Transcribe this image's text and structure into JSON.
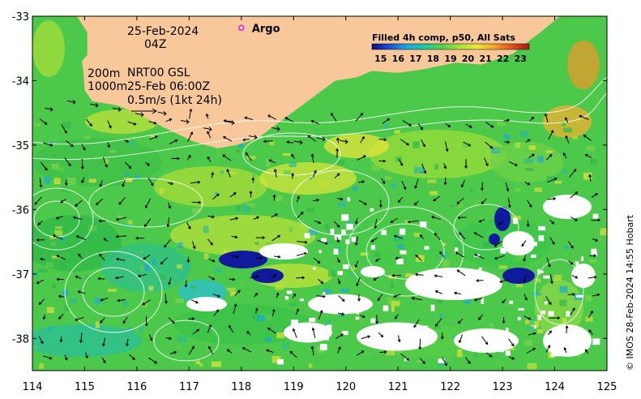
{
  "map": {
    "lon_range": [
      114,
      125
    ],
    "lat_range": [
      -38.5,
      -33
    ],
    "x_ticks": [
      "114",
      "115",
      "116",
      "117",
      "118",
      "119",
      "120",
      "121",
      "122",
      "123",
      "124",
      "125"
    ],
    "y_ticks": [
      "-33",
      "-34",
      "-35",
      "-36",
      "-37",
      "-38"
    ],
    "land_color": "#f9c89a",
    "missing_color": "#ffffff"
  },
  "annotations": {
    "date": "25-Feb-2024",
    "time": "04Z",
    "contour_depths_200": "200m",
    "contour_depths_1000": "1000m",
    "altimetry_source": "NRT00 GSL",
    "altimetry_time": "25-Feb 06:00Z",
    "vector_scale": "0.5m/s (1kt 24h)"
  },
  "legend": {
    "title": "Filled 4h comp, p50, All Sats",
    "ticks": [
      "15",
      "16",
      "17",
      "18",
      "19",
      "20",
      "21",
      "22",
      "23"
    ],
    "range": [
      14.5,
      23.5
    ],
    "colors": [
      "#0a0a8c",
      "#1f4fd6",
      "#1aa7e0",
      "#22c7a0",
      "#4fd24f",
      "#a4e03a",
      "#e8e63a",
      "#f2a52a",
      "#e0501e",
      "#a81a1a"
    ]
  },
  "argo": {
    "label": "Argo",
    "lon": 118,
    "lat": -33.18,
    "color": "#e01ee0"
  },
  "credit": "© IMOS 28-Feb-2024 14:55 Hobart"
}
